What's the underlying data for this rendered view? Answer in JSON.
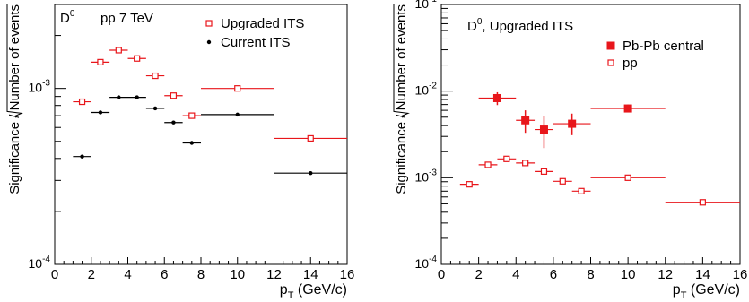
{
  "chart_data": [
    {
      "type": "scatter",
      "y_scale": "log",
      "xlim": [
        0,
        16
      ],
      "ylim": [
        0.0001,
        0.003
      ],
      "xlabel_main": "p",
      "xlabel_sub": "T",
      "xlabel_unit": " (GeV/c)",
      "ylabel_left": "Significance / ",
      "ylabel_sqrt": "Number of events",
      "title_base": "D",
      "title_sup": "0",
      "title_rest": "",
      "annotation": "pp 7 TeV",
      "legend_position": "top-right",
      "x_ticks": [
        0,
        2,
        4,
        6,
        8,
        10,
        12,
        14,
        16
      ],
      "x_tick_labels": [
        "0",
        "2",
        "4",
        "6",
        "8",
        "10",
        "12",
        "14",
        "16"
      ],
      "y_ticks": [
        {
          "value": 0.0001,
          "base": "10",
          "exp": "-4"
        },
        {
          "value": 0.001,
          "base": "10",
          "exp": "-3"
        }
      ],
      "series": [
        {
          "name": "Upgraded ITS",
          "marker": "open-square",
          "color": "#e8161b",
          "points": [
            {
              "x": 1.5,
              "xerr": 0.5,
              "y": 0.00084
            },
            {
              "x": 2.5,
              "xerr": 0.5,
              "y": 0.00141
            },
            {
              "x": 3.5,
              "xerr": 0.5,
              "y": 0.00165
            },
            {
              "x": 4.5,
              "xerr": 0.5,
              "y": 0.00148
            },
            {
              "x": 5.5,
              "xerr": 0.5,
              "y": 0.00118
            },
            {
              "x": 6.5,
              "xerr": 0.5,
              "y": 0.00091
            },
            {
              "x": 7.5,
              "xerr": 0.5,
              "y": 0.0007
            },
            {
              "x": 10,
              "xerr": 2,
              "y": 0.001
            },
            {
              "x": 14,
              "xerr": 2,
              "y": 0.00052
            }
          ]
        },
        {
          "name": "Current ITS",
          "marker": "filled-circle",
          "color": "#000000",
          "points": [
            {
              "x": 1.5,
              "xerr": 0.5,
              "y": 0.00041
            },
            {
              "x": 2.5,
              "xerr": 0.5,
              "y": 0.00073
            },
            {
              "x": 3.5,
              "xerr": 0.5,
              "y": 0.00089
            },
            {
              "x": 4.5,
              "xerr": 0.5,
              "y": 0.00089
            },
            {
              "x": 5.5,
              "xerr": 0.5,
              "y": 0.00077
            },
            {
              "x": 6.5,
              "xerr": 0.5,
              "y": 0.00064
            },
            {
              "x": 7.5,
              "xerr": 0.5,
              "y": 0.00049
            },
            {
              "x": 10,
              "xerr": 2,
              "y": 0.00071
            },
            {
              "x": 14,
              "xerr": 2,
              "y": 0.00033
            }
          ]
        }
      ]
    },
    {
      "type": "scatter",
      "y_scale": "log",
      "xlim": [
        0,
        16
      ],
      "ylim": [
        0.0001,
        0.1
      ],
      "xlabel_main": "p",
      "xlabel_sub": "T",
      "xlabel_unit": " (GeV/c)",
      "ylabel_left": "Significance / ",
      "ylabel_sqrt": "Number of events",
      "title_base": "D",
      "title_sup": "0",
      "title_rest": ", Upgraded ITS",
      "annotation": "",
      "legend_position": "top-right",
      "x_ticks": [
        0,
        2,
        4,
        6,
        8,
        10,
        12,
        14,
        16
      ],
      "x_tick_labels": [
        "0",
        "2",
        "4",
        "6",
        "8",
        "10",
        "12",
        "14",
        "16"
      ],
      "y_ticks": [
        {
          "value": 0.0001,
          "base": "10",
          "exp": "-4"
        },
        {
          "value": 0.001,
          "base": "10",
          "exp": "-3"
        },
        {
          "value": 0.01,
          "base": "10",
          "exp": "-2"
        },
        {
          "value": 0.1,
          "base": "10",
          "exp": "-1"
        }
      ],
      "series": [
        {
          "name": "Pb-Pb central",
          "marker": "filled-square",
          "color": "#e8161b",
          "points": [
            {
              "x": 3,
              "xerr": 1,
              "y": 0.0083,
              "ylo": 0.0069,
              "yhi": 0.0097
            },
            {
              "x": 4.5,
              "xerr": 0.5,
              "y": 0.0046,
              "ylo": 0.0033,
              "yhi": 0.006
            },
            {
              "x": 5.5,
              "xerr": 0.5,
              "y": 0.0036,
              "ylo": 0.0022,
              "yhi": 0.0052
            },
            {
              "x": 7,
              "xerr": 1,
              "y": 0.0042,
              "ylo": 0.0031,
              "yhi": 0.0055
            },
            {
              "x": 10,
              "xerr": 2,
              "y": 0.0063,
              "ylo": 0.0057,
              "yhi": 0.007
            }
          ]
        },
        {
          "name": "pp",
          "marker": "open-square",
          "color": "#e8161b",
          "points": [
            {
              "x": 1.5,
              "xerr": 0.5,
              "y": 0.00084
            },
            {
              "x": 2.5,
              "xerr": 0.5,
              "y": 0.00141
            },
            {
              "x": 3.5,
              "xerr": 0.5,
              "y": 0.00165
            },
            {
              "x": 4.5,
              "xerr": 0.5,
              "y": 0.00148
            },
            {
              "x": 5.5,
              "xerr": 0.5,
              "y": 0.00118
            },
            {
              "x": 6.5,
              "xerr": 0.5,
              "y": 0.00091
            },
            {
              "x": 7.5,
              "xerr": 0.5,
              "y": 0.0007
            },
            {
              "x": 10,
              "xerr": 2,
              "y": 0.001
            },
            {
              "x": 14,
              "xerr": 2,
              "y": 0.00052
            }
          ]
        }
      ]
    }
  ]
}
